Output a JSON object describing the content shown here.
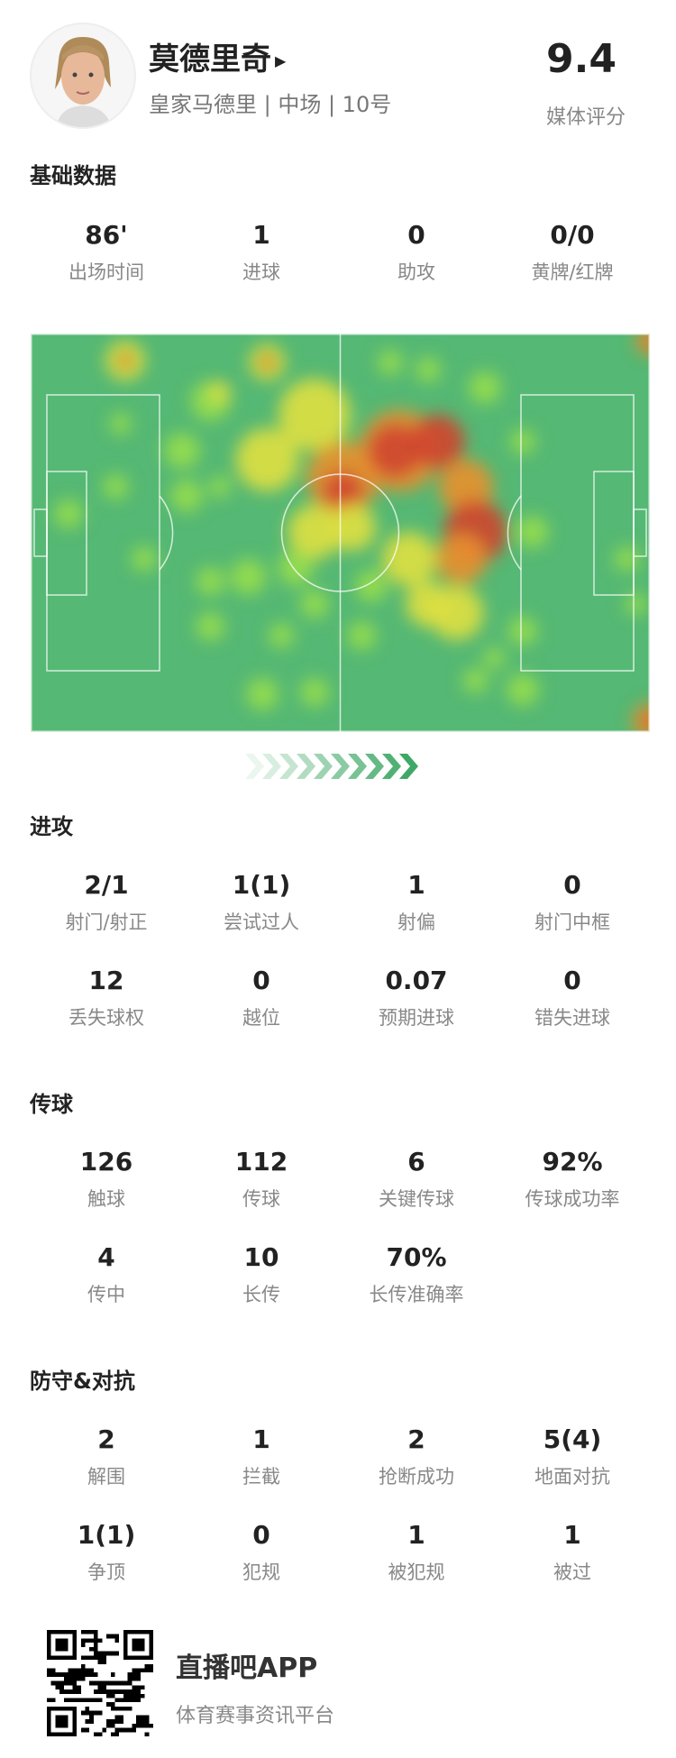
{
  "player": {
    "name": "莫德里奇",
    "team_line": "皇家马德里 | 中场 | 10号",
    "rating": "9.4",
    "rating_label": "媒体评分"
  },
  "basic": {
    "title": "基础数据",
    "items": [
      {
        "value": "86'",
        "label": "出场时间"
      },
      {
        "value": "1",
        "label": "进球"
      },
      {
        "value": "0",
        "label": "助攻"
      },
      {
        "value": "0/0",
        "label": "黄牌/红牌"
      }
    ]
  },
  "heatmap": {
    "pitch_color": "#55b874",
    "direction": "right"
  },
  "attack": {
    "title": "进攻",
    "items": [
      {
        "value": "2/1",
        "label": "射门/射正"
      },
      {
        "value": "1(1)",
        "label": "尝试过人"
      },
      {
        "value": "1",
        "label": "射偏"
      },
      {
        "value": "0",
        "label": "射门中框"
      },
      {
        "value": "12",
        "label": "丢失球权"
      },
      {
        "value": "0",
        "label": "越位"
      },
      {
        "value": "0.07",
        "label": "预期进球"
      },
      {
        "value": "0",
        "label": "错失进球"
      }
    ]
  },
  "passing": {
    "title": "传球",
    "items": [
      {
        "value": "126",
        "label": "触球"
      },
      {
        "value": "112",
        "label": "传球"
      },
      {
        "value": "6",
        "label": "关键传球"
      },
      {
        "value": "92%",
        "label": "传球成功率"
      },
      {
        "value": "4",
        "label": "传中"
      },
      {
        "value": "10",
        "label": "长传"
      },
      {
        "value": "70%",
        "label": "长传准确率"
      }
    ]
  },
  "defense": {
    "title": "防守&对抗",
    "items": [
      {
        "value": "2",
        "label": "解围"
      },
      {
        "value": "1",
        "label": "拦截"
      },
      {
        "value": "2",
        "label": "抢断成功"
      },
      {
        "value": "5(4)",
        "label": "地面对抗"
      },
      {
        "value": "1(1)",
        "label": "争顶"
      },
      {
        "value": "0",
        "label": "犯规"
      },
      {
        "value": "1",
        "label": "被犯规"
      },
      {
        "value": "1",
        "label": "被过"
      }
    ]
  },
  "footer": {
    "app_name": "直播吧APP",
    "slogan": "体育赛事资讯平台"
  }
}
